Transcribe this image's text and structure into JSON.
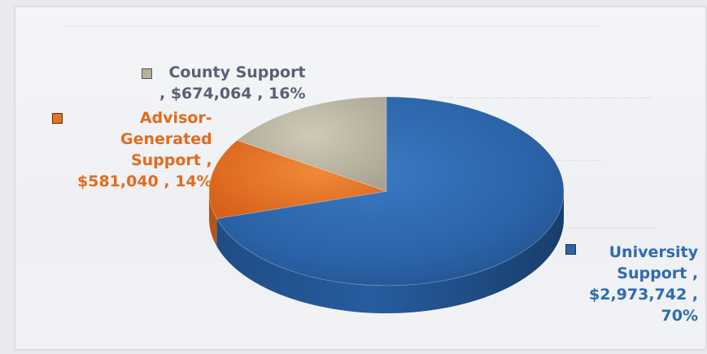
{
  "chart_data": {
    "type": "pie",
    "slices": [
      {
        "name": "University Support",
        "value": 2973742,
        "percent": 70,
        "color": "#2d63a6"
      },
      {
        "name": "Advisor-Generated Support",
        "value": 581040,
        "percent": 14,
        "color": "#e67424"
      },
      {
        "name": "County Support",
        "value": 674064,
        "percent": 16,
        "color": "#bdb6a1"
      }
    ],
    "labels": {
      "county": [
        "County Support",
        ", $674,064 , 16%"
      ],
      "advisor": [
        "Advisor-",
        "Generated",
        "Support ,",
        "$581,040 , 14%"
      ],
      "university": [
        "University",
        "Support ,",
        "$2,973,742 ,",
        "70%"
      ]
    },
    "style": "3d-pie",
    "legend": "none"
  }
}
